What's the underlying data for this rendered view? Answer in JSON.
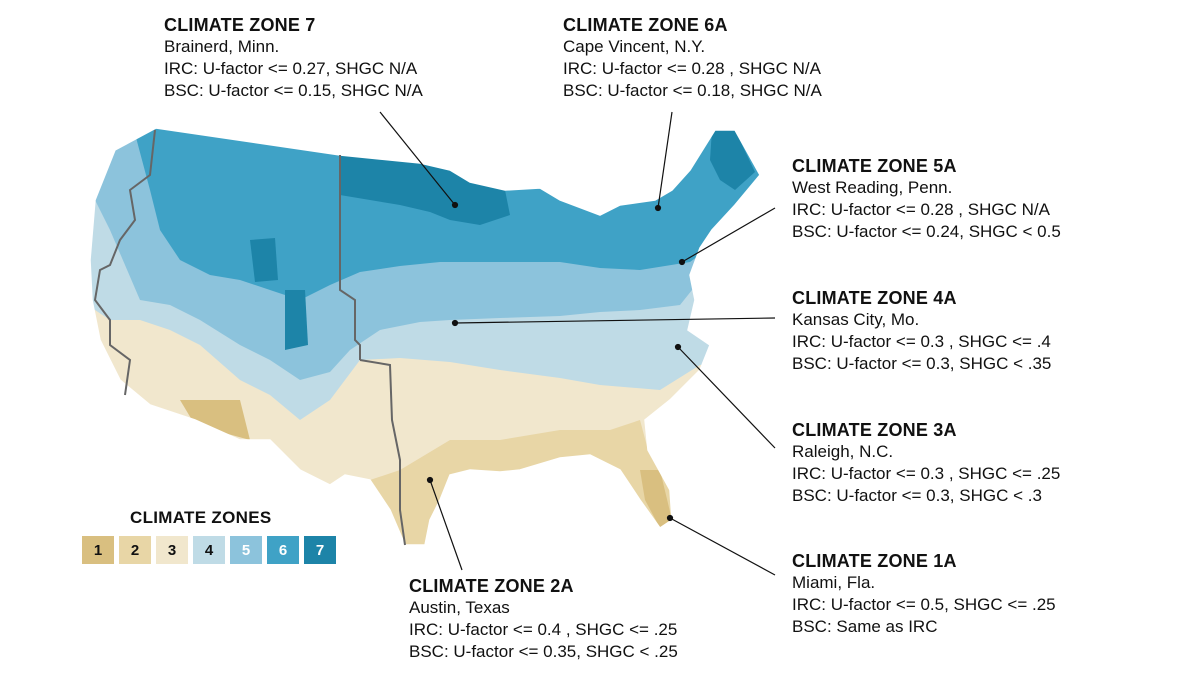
{
  "callouts": [
    {
      "id": "zone7",
      "title": "CLIMATE ZONE 7",
      "city": "Brainerd, Minn.",
      "irc": "IRC: U-factor <= 0.27, SHGC N/A",
      "bsc": "BSC: U-factor <= 0.15, SHGC N/A"
    },
    {
      "id": "zone6a",
      "title": "CLIMATE ZONE 6A",
      "city": "Cape Vincent, N.Y.",
      "irc": "IRC: U-factor <= 0.28 , SHGC N/A",
      "bsc": "BSC: U-factor <= 0.18, SHGC N/A"
    },
    {
      "id": "zone5a",
      "title": "CLIMATE ZONE 5A",
      "city": "West Reading, Penn.",
      "irc": "IRC: U-factor <= 0.28 , SHGC N/A",
      "bsc": "BSC: U-factor <= 0.24, SHGC < 0.5"
    },
    {
      "id": "zone4a",
      "title": "CLIMATE ZONE 4A",
      "city": "Kansas City, Mo.",
      "irc": "IRC: U-factor <= 0.3 , SHGC <= .4",
      "bsc": "BSC: U-factor <= 0.3, SHGC < .35"
    },
    {
      "id": "zone3a",
      "title": "CLIMATE ZONE 3A",
      "city": "Raleigh, N.C.",
      "irc": "IRC: U-factor <= 0.3 , SHGC <= .25",
      "bsc": "BSC: U-factor <= 0.3, SHGC < .3"
    },
    {
      "id": "zone2a",
      "title": "CLIMATE ZONE 2A",
      "city": "Austin, Texas",
      "irc": "IRC: U-factor <= 0.4 , SHGC <= .25",
      "bsc": "BSC: U-factor <= 0.35, SHGC < .25"
    },
    {
      "id": "zone1a",
      "title": "CLIMATE ZONE 1A",
      "city": "Miami, Fla.",
      "irc": "IRC: U-factor <= 0.5, SHGC <= .25",
      "bsc": "BSC: Same as IRC"
    }
  ],
  "legend": {
    "title": "CLIMATE ZONES",
    "items": [
      {
        "label": "1",
        "color": "#d9bf80",
        "text_color": "#111111"
      },
      {
        "label": "2",
        "color": "#e8d6a6",
        "text_color": "#111111"
      },
      {
        "label": "3",
        "color": "#f1e7cd",
        "text_color": "#111111"
      },
      {
        "label": "4",
        "color": "#bfdbe6",
        "text_color": "#111111"
      },
      {
        "label": "5",
        "color": "#8cc3dc",
        "text_color": "#ffffff"
      },
      {
        "label": "6",
        "color": "#3fa2c6",
        "text_color": "#ffffff"
      },
      {
        "label": "7",
        "color": "#1d84a8",
        "text_color": "#ffffff"
      }
    ]
  }
}
